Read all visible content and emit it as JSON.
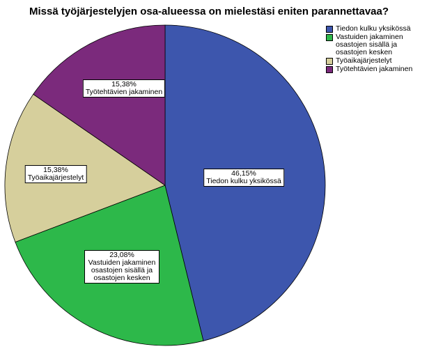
{
  "chart_data": {
    "type": "pie",
    "title": "Missä työjärjestelyjen osa-alueessa on mielestäsi eniten parannettavaa?",
    "categories": [
      "Tiedon kulku yksikössä",
      "Vastuiden jakaminen osastojen sisällä ja osastojen kesken",
      "Työaikajärjestelyt",
      "Työtehtävien jakaminen"
    ],
    "values": [
      46.15,
      23.08,
      15.38,
      15.38
    ],
    "value_labels": [
      "46,15%",
      "23,08%",
      "15,38%",
      "15,38%"
    ],
    "colors": [
      "#3d56ad",
      "#2db84a",
      "#d6cf9c",
      "#7b2a7c"
    ],
    "legend": "top-right"
  }
}
